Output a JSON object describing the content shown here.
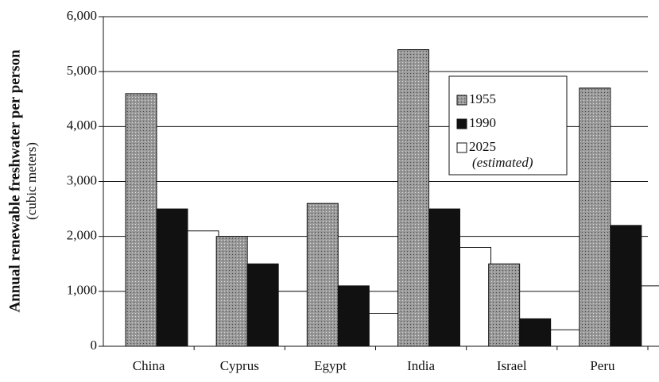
{
  "chart_data": {
    "type": "bar",
    "y_label": "Annual renewable freshwater per person",
    "y_sublabel": "(cubic meters)",
    "categories": [
      "China",
      "Cyprus",
      "Egypt",
      "India",
      "Israel",
      "Peru"
    ],
    "series": [
      {
        "name": "1955",
        "color": "#9a9a9a",
        "values": [
          4600,
          2000,
          2600,
          5400,
          1500,
          4700
        ]
      },
      {
        "name": "1990",
        "color": "#111111",
        "values": [
          2500,
          1500,
          1100,
          2500,
          500,
          2200
        ]
      },
      {
        "name": "2025",
        "note": "(estimated)",
        "color": "#ffffff",
        "values": [
          2100,
          1000,
          600,
          1800,
          300,
          1100
        ]
      }
    ],
    "ylim": [
      0,
      6000
    ],
    "yticks": [
      0,
      {
        "value": 1000,
        "label": "1,000"
      },
      {
        "value": 2000,
        "label": "2,000"
      },
      {
        "value": 3000,
        "label": "3,000"
      },
      {
        "value": 4000,
        "label": "4,000"
      },
      {
        "value": 5000,
        "label": "5,000"
      },
      {
        "value": 6000,
        "label": "6,000"
      }
    ],
    "grid": true,
    "legend": "upper right"
  }
}
